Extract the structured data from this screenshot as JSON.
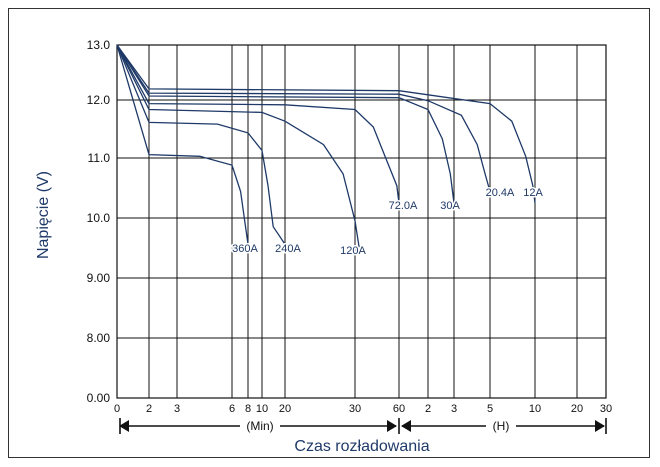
{
  "chart_data": {
    "type": "line",
    "ylabel": "Napięcie (V)",
    "xlabel": "Czas rozładowania",
    "y_ticks": [
      "13.0",
      "12.0",
      "11.0",
      "10.0",
      "9.00",
      "8.00",
      "0.00"
    ],
    "x_ticks_min": [
      "0",
      "2",
      "3",
      "6",
      "8",
      "10",
      "20",
      "30",
      "60"
    ],
    "x_ticks_h": [
      "2",
      "3",
      "5",
      "10",
      "20",
      "30"
    ],
    "x_unit_min": "(Min)",
    "x_unit_h": "(H)",
    "ylim": [
      0,
      13
    ],
    "grid": true,
    "series": [
      {
        "name": "360A",
        "points": [
          [
            0,
            13.0
          ],
          [
            2,
            11.13
          ],
          [
            4,
            11.1
          ],
          [
            6,
            10.95
          ],
          [
            7,
            10.5
          ],
          [
            7.6,
            9.95
          ],
          [
            8,
            9.6
          ]
        ]
      },
      {
        "name": "240A",
        "points": [
          [
            0,
            13.0
          ],
          [
            2,
            11.68
          ],
          [
            5,
            11.65
          ],
          [
            8,
            11.5
          ],
          [
            10,
            11.2
          ],
          [
            12,
            10.6
          ],
          [
            14,
            9.9
          ],
          [
            20,
            9.6
          ]
        ]
      },
      {
        "name": "120A",
        "points": [
          [
            0,
            13.0
          ],
          [
            2,
            11.9
          ],
          [
            10,
            11.85
          ],
          [
            20,
            11.7
          ],
          [
            25,
            11.3
          ],
          [
            28,
            10.8
          ],
          [
            30,
            10.0
          ],
          [
            32,
            9.55
          ]
        ]
      },
      {
        "name": "72.0A",
        "points": [
          [
            0,
            13.0
          ],
          [
            2,
            12.0
          ],
          [
            20,
            11.98
          ],
          [
            30,
            11.9
          ],
          [
            40,
            11.6
          ],
          [
            50,
            11.0
          ],
          [
            58,
            10.6
          ],
          [
            60,
            10.3
          ]
        ]
      },
      {
        "name": "30A",
        "points": [
          [
            0,
            13.0
          ],
          [
            2,
            12.13
          ],
          [
            60,
            12.1
          ],
          [
            120,
            11.9
          ],
          [
            150,
            11.4
          ],
          [
            170,
            10.8
          ],
          [
            180,
            10.3
          ]
        ]
      },
      {
        "name": "20.4A",
        "points": [
          [
            0,
            13.0
          ],
          [
            2,
            12.18
          ],
          [
            60,
            12.16
          ],
          [
            120,
            12.05
          ],
          [
            200,
            11.8
          ],
          [
            250,
            11.3
          ],
          [
            280,
            10.8
          ],
          [
            300,
            10.5
          ]
        ]
      },
      {
        "name": "12A",
        "points": [
          [
            0,
            13.0
          ],
          [
            2,
            12.25
          ],
          [
            60,
            12.22
          ],
          [
            120,
            12.15
          ],
          [
            300,
            12.0
          ],
          [
            420,
            11.7
          ],
          [
            520,
            11.1
          ],
          [
            580,
            10.6
          ],
          [
            600,
            10.3
          ]
        ]
      }
    ],
    "curve_labels": [
      "360A",
      "240A",
      "120A",
      "72.0A",
      "30A",
      "20.4A",
      "12A"
    ]
  }
}
